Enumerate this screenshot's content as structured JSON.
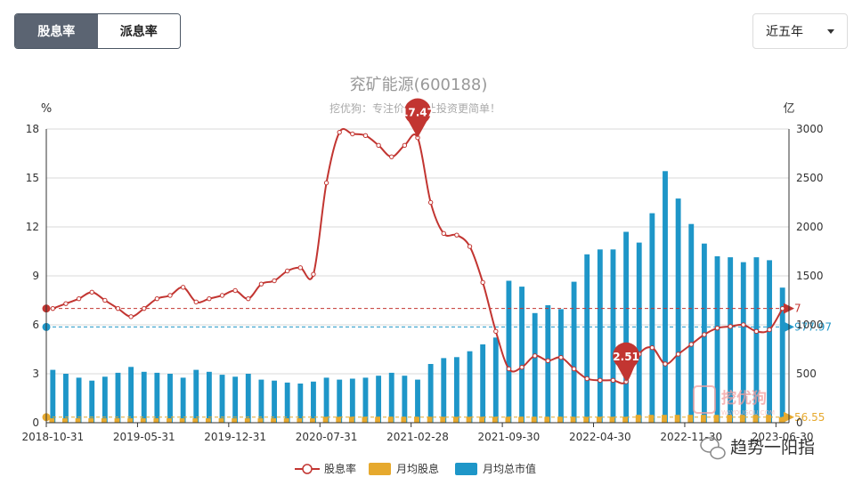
{
  "tabs": {
    "yield_label": "股息率",
    "dividend_label": "派息率"
  },
  "range_select": {
    "selected": "近五年"
  },
  "chart_data": {
    "type": "bar+line",
    "title": "兖矿能源(600188)",
    "subtitle": "挖优狗：专注价值，让投资更简单！",
    "left_unit": "%",
    "right_unit": "亿",
    "left_ylim": [
      0,
      18
    ],
    "left_ticks": [
      "0",
      "3",
      "6",
      "9",
      "12",
      "15",
      "18"
    ],
    "right_ylim": [
      0,
      3000
    ],
    "right_ticks": [
      "0",
      "500",
      "1000",
      "1500",
      "2000",
      "2500",
      "3000"
    ],
    "x_ticks": [
      "2018-10-31",
      "2019-05-31",
      "2019-12-31",
      "2020-07-31",
      "2021-02-28",
      "2021-09-30",
      "2022-04-30",
      "2022-11-30",
      "2023-06-30"
    ],
    "months_count": 57,
    "series": [
      {
        "name": "股息率",
        "color": "#c23531",
        "values": [
          7.0,
          7.3,
          7.6,
          8.0,
          7.5,
          7.0,
          6.5,
          7.0,
          7.6,
          7.8,
          8.3,
          7.4,
          7.6,
          7.8,
          8.1,
          7.6,
          8.5,
          8.7,
          9.3,
          9.5,
          9.1,
          14.7,
          17.8,
          17.7,
          17.6,
          17.0,
          16.3,
          17.0,
          17.47,
          13.5,
          11.6,
          11.5,
          10.8,
          8.6,
          5.6,
          3.3,
          3.4,
          4.1,
          3.8,
          4.0,
          3.3,
          2.7,
          2.6,
          2.6,
          2.51,
          4.2,
          4.6,
          3.6,
          4.2,
          4.8,
          5.4,
          5.8,
          5.9,
          6.0,
          5.6,
          5.7,
          7.0
        ]
      },
      {
        "name": "月均股息",
        "color": "#e6a92e",
        "values": [
          45,
          45,
          45,
          45,
          45,
          45,
          45,
          45,
          45,
          45,
          45,
          45,
          45,
          45,
          45,
          45,
          45,
          45,
          45,
          45,
          45,
          60,
          60,
          60,
          60,
          60,
          60,
          60,
          60,
          60,
          60,
          60,
          60,
          60,
          60,
          60,
          60,
          60,
          60,
          60,
          60,
          60,
          60,
          60,
          60,
          80,
          80,
          80,
          80,
          80,
          80,
          80,
          80,
          80,
          80,
          80,
          56.55
        ]
      },
      {
        "name": "月均总市值",
        "color": "#1e96c8",
        "values": [
          540,
          500,
          460,
          430,
          470,
          510,
          570,
          520,
          510,
          500,
          460,
          540,
          520,
          490,
          470,
          500,
          440,
          430,
          410,
          400,
          420,
          460,
          440,
          450,
          460,
          480,
          510,
          480,
          440,
          600,
          660,
          670,
          730,
          800,
          870,
          1450,
          1390,
          1120,
          1200,
          1160,
          1440,
          1720,
          1770,
          1770,
          1950,
          1840,
          2140,
          2570,
          2290,
          2030,
          1830,
          1700,
          1690,
          1640,
          1690,
          1660,
          1380
        ]
      }
    ],
    "markers": [
      {
        "label": "17.47",
        "series": "股息率",
        "index": 28
      },
      {
        "label": "2.51",
        "series": "股息率",
        "index": 44
      }
    ],
    "reference_lines": [
      {
        "label": "7",
        "value": 7,
        "axis": "left",
        "color": "#c23531"
      },
      {
        "label": "977.97",
        "value": 977.97,
        "axis": "right",
        "color": "#1e96c8"
      },
      {
        "label": "56.55",
        "value": 56.55,
        "axis": "right",
        "color": "#e6a92e"
      }
    ],
    "legend_position": "bottom-center",
    "grid": true
  },
  "watermark": {
    "logo_text": "挖优狗",
    "brand_text": "趋势一阳指"
  }
}
